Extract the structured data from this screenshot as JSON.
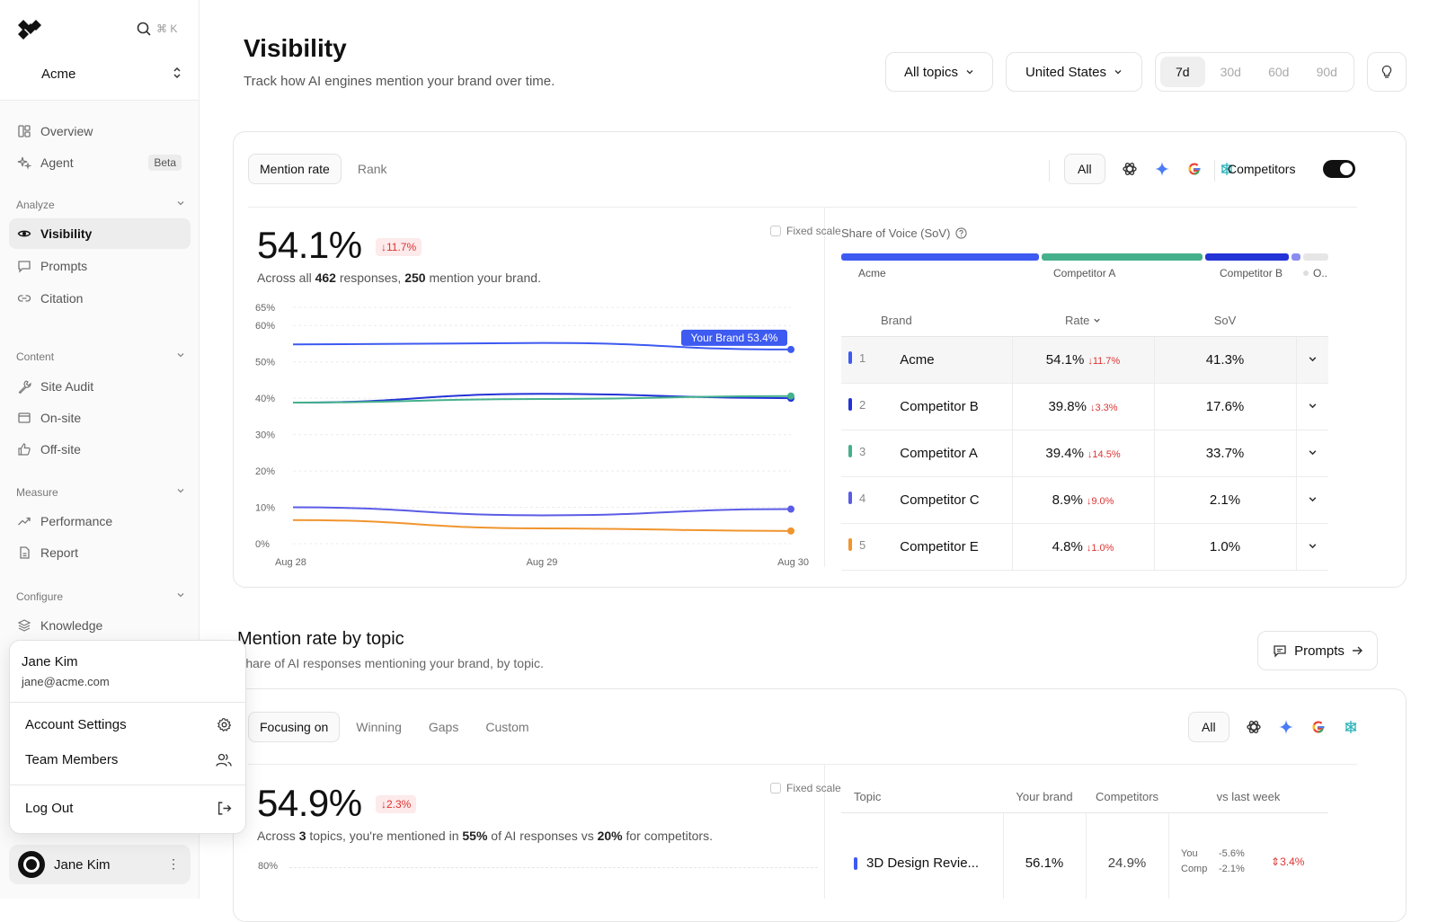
{
  "sidebar": {
    "search_shortcut": "⌘ K",
    "workspace": "Acme",
    "items_top": [
      {
        "label": "Overview",
        "icon": "grid-icon"
      },
      {
        "label": "Agent",
        "icon": "sparkle-icon",
        "badge": "Beta"
      }
    ],
    "sections": [
      {
        "label": "Analyze",
        "items": [
          {
            "label": "Visibility"
          },
          {
            "label": "Prompts"
          },
          {
            "label": "Citation"
          }
        ]
      },
      {
        "label": "Content",
        "items": [
          {
            "label": "Site Audit"
          },
          {
            "label": "On-site"
          },
          {
            "label": "Off-site"
          }
        ]
      },
      {
        "label": "Measure",
        "items": [
          {
            "label": "Performance"
          },
          {
            "label": "Report"
          }
        ]
      },
      {
        "label": "Configure",
        "items": [
          {
            "label": "Knowledge"
          }
        ]
      }
    ],
    "user_name": "Jane Kim"
  },
  "popup": {
    "name": "Jane Kim",
    "email": "jane@acme.com",
    "account_settings": "Account Settings",
    "team_members": "Team Members",
    "log_out": "Log Out"
  },
  "header": {
    "title": "Visibility",
    "subtitle": "Track how AI engines mention your brand over time.",
    "topics_filter": "All topics",
    "country_filter": "United States",
    "ranges": [
      "7d",
      "30d",
      "60d",
      "90d"
    ],
    "active_range": "7d"
  },
  "visibility_card": {
    "tabs": [
      "Mention rate",
      "Rank"
    ],
    "engines_all": "All",
    "competitors_label": "Competitors",
    "competitors_on": true,
    "big_value": "54.1%",
    "delta": "↓11.7%",
    "desc_prefix": "Across all ",
    "responses": "462",
    "desc_mid": " responses, ",
    "mentions": "250",
    "desc_suffix": " mention your brand.",
    "fixed_scale": "Fixed scale",
    "tooltip": "Your Brand 53.4%",
    "sov_title": "Share of Voice (SoV)",
    "sov_labels": [
      "Acme",
      "Competitor A",
      "Competitor B",
      "O.."
    ],
    "table_headers": {
      "brand": "Brand",
      "rate": "Rate",
      "sov": "SoV"
    },
    "brands": [
      {
        "rank": "1",
        "name": "Acme",
        "rate": "54.1%",
        "change": "11.7%",
        "sov": "41.3%",
        "color": "#3d5af1"
      },
      {
        "rank": "2",
        "name": "Competitor B",
        "rate": "39.8%",
        "change": "3.3%",
        "sov": "17.6%",
        "color": "#2433d6"
      },
      {
        "rank": "3",
        "name": "Competitor A",
        "rate": "39.4%",
        "change": "14.5%",
        "sov": "33.7%",
        "color": "#45b08c"
      },
      {
        "rank": "4",
        "name": "Competitor C",
        "rate": "8.9%",
        "change": "9.0%",
        "sov": "2.1%",
        "color": "#5b5ce6"
      },
      {
        "rank": "5",
        "name": "Competitor E",
        "rate": "4.8%",
        "change": "1.0%",
        "sov": "1.0%",
        "color": "#f0952e"
      }
    ]
  },
  "chart_data": {
    "type": "line",
    "x": [
      "Aug 28",
      "Aug 29",
      "Aug 30"
    ],
    "yticks": [
      "0%",
      "10%",
      "20%",
      "30%",
      "40%",
      "50%",
      "60%",
      "65%"
    ],
    "ylim": [
      0,
      65
    ],
    "series": [
      {
        "values": [
          54.8,
          55.2,
          53.4
        ],
        "color": "#3d5af1"
      },
      {
        "values": [
          38.8,
          41.2,
          40.0
        ],
        "color": "#2433d6"
      },
      {
        "values": [
          38.8,
          39.8,
          40.6
        ],
        "color": "#45b08c"
      },
      {
        "values": [
          10.0,
          7.8,
          9.5
        ],
        "color": "#5b5ce6"
      },
      {
        "values": [
          6.5,
          4.2,
          3.5
        ],
        "color": "#f0952e"
      }
    ]
  },
  "topic_section": {
    "title": "Mention rate by topic",
    "subtitle": "Share of AI responses mentioning your brand, by topic.",
    "prompts_button": "Prompts",
    "tabs": [
      "Focusing on",
      "Winning",
      "Gaps",
      "Custom"
    ],
    "engines_all": "All",
    "big_value": "54.9%",
    "delta": "↓2.3%",
    "desc_prefix": "Across ",
    "topics_count": "3",
    "desc_mid1": " topics, you're mentioned in ",
    "you_pct": "55%",
    "desc_mid2": " of AI responses vs ",
    "comp_pct": "20%",
    "desc_suffix": " for competitors.",
    "fixed_scale": "Fixed scale",
    "ytick_top": "80%",
    "table_headers": {
      "topic": "Topic",
      "your_brand": "Your brand",
      "competitors": "Competitors",
      "vs_last_week": "vs last week"
    },
    "rows": [
      {
        "topic": "3D Design Revie...",
        "your_brand": "56.1%",
        "competitors": "24.9%",
        "you_label": "You",
        "you_change": "-5.6%",
        "comp_label": "Comp",
        "comp_change": "-2.1%",
        "net": "3.4%"
      }
    ]
  }
}
